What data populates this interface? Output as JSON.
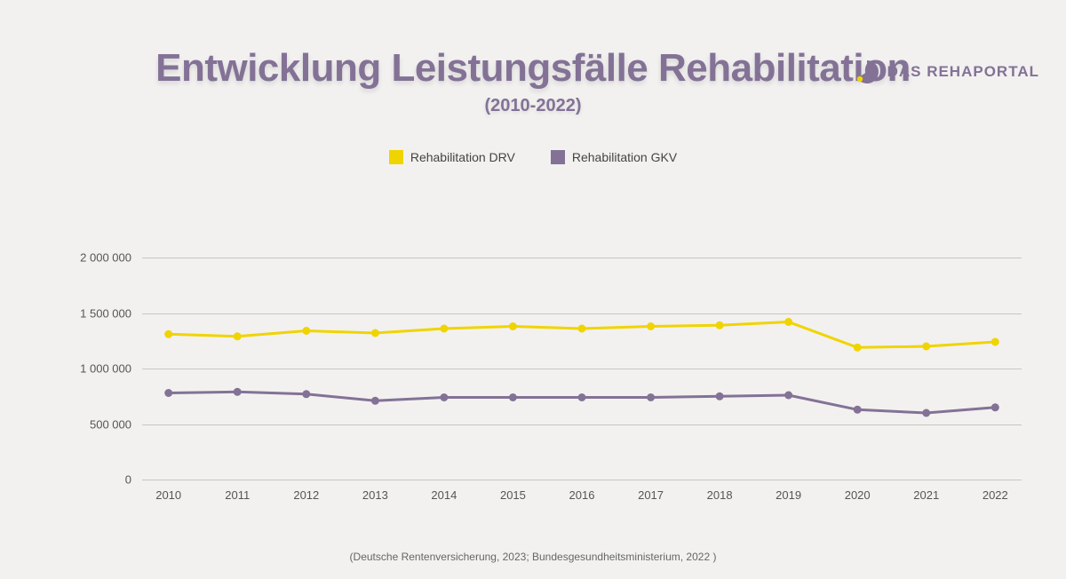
{
  "brand": {
    "name": "DAS REHAPORTAL",
    "circle_color": "#837296",
    "dot_color": "#f0d400"
  },
  "title": "Entwicklung Leistungsfälle Rehabilitation",
  "subtitle": "(2010-2022)",
  "legend": [
    {
      "label": "Rehabilitation DRV",
      "color": "#f0d400"
    },
    {
      "label": "Rehabilitation GKV",
      "color": "#837296"
    }
  ],
  "chart": {
    "type": "line",
    "background_color": "#f2f1f0",
    "grid_color": "#c9c5c2",
    "line_width": 3,
    "marker_radius": 4.5,
    "ylim": [
      0,
      2000000
    ],
    "ytick_step": 500000,
    "y_ticks": [
      {
        "v": 0,
        "label": "0"
      },
      {
        "v": 500000,
        "label": "500 000"
      },
      {
        "v": 1000000,
        "label": "1 000 000"
      },
      {
        "v": 1500000,
        "label": "1 500 000"
      },
      {
        "v": 2000000,
        "label": "2 000 000"
      }
    ],
    "categories": [
      "2010",
      "2011",
      "2012",
      "2013",
      "2014",
      "2015",
      "2016",
      "2017",
      "2018",
      "2019",
      "2020",
      "2021",
      "2022"
    ],
    "series": [
      {
        "name": "Rehabilitation DRV",
        "color": "#f0d400",
        "values": [
          1310000,
          1290000,
          1340000,
          1320000,
          1360000,
          1380000,
          1360000,
          1380000,
          1390000,
          1420000,
          1190000,
          1200000,
          1240000
        ]
      },
      {
        "name": "Rehabilitation GKV",
        "color": "#837296",
        "values": [
          780000,
          790000,
          770000,
          710000,
          740000,
          740000,
          740000,
          740000,
          750000,
          760000,
          630000,
          600000,
          650000
        ]
      }
    ]
  },
  "source": "(Deutsche Rentenversicherung, 2023; Bundesgesundheitsministerium, 2022  )"
}
